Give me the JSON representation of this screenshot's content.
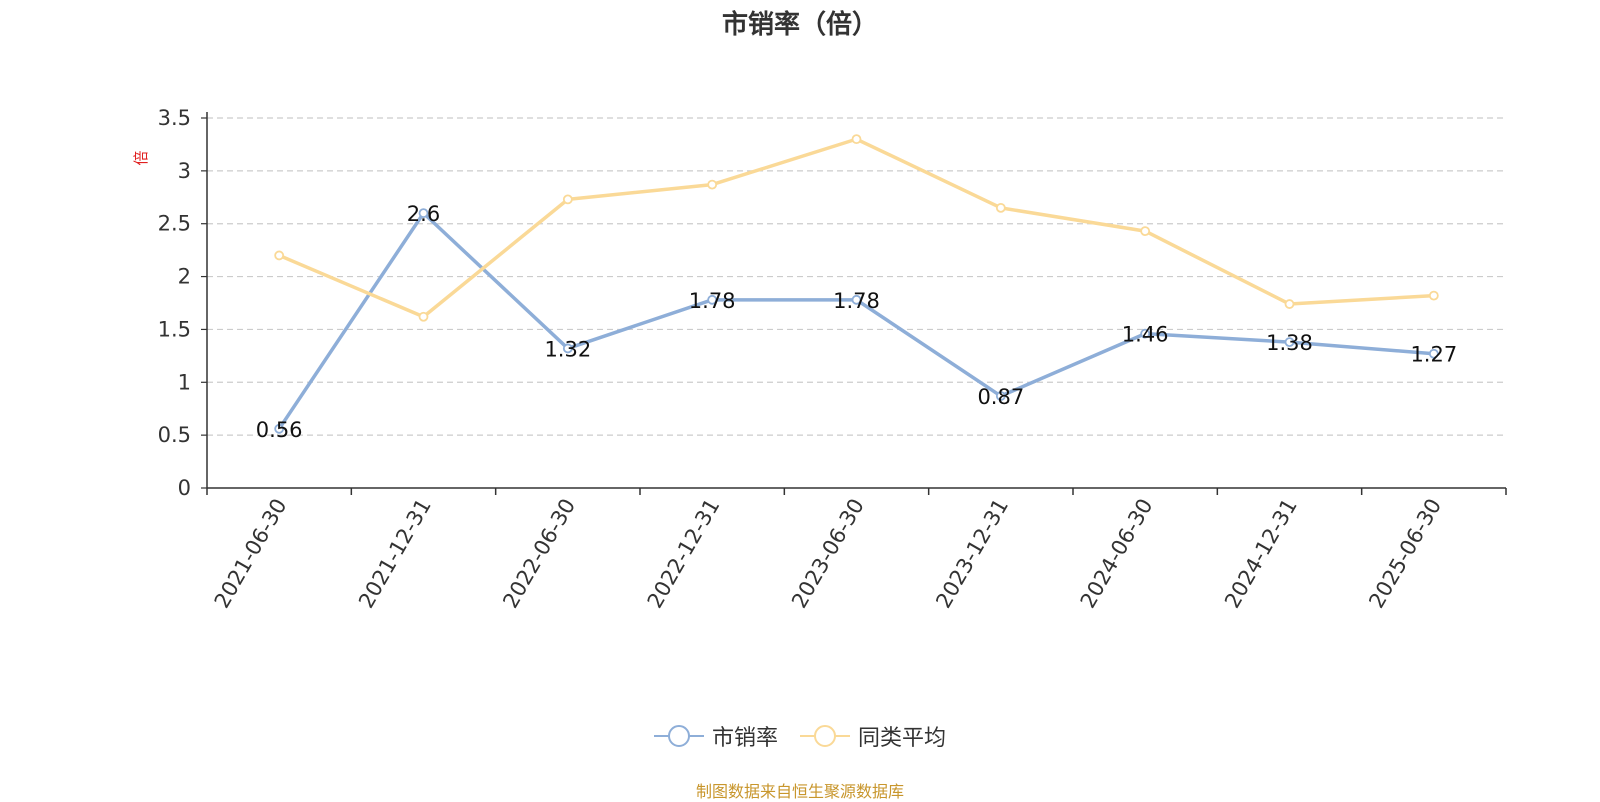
{
  "chart_data": {
    "type": "line",
    "title": "市销率（倍）",
    "ylabel": "倍",
    "xlabel": "",
    "ylim": [
      0,
      3.5
    ],
    "yticks": [
      0,
      0.5,
      1,
      1.5,
      2,
      2.5,
      3,
      3.5
    ],
    "grid": true,
    "legend_position": "bottom",
    "categories": [
      "2021-06-30",
      "2021-12-31",
      "2022-06-30",
      "2022-12-31",
      "2023-06-30",
      "2023-12-31",
      "2024-06-30",
      "2024-12-31",
      "2025-06-30"
    ],
    "series": [
      {
        "name": "市销率",
        "color": "#8eaed8",
        "show_labels": true,
        "values": [
          0.56,
          2.6,
          1.32,
          1.78,
          1.78,
          0.87,
          1.46,
          1.38,
          1.27
        ]
      },
      {
        "name": "同类平均",
        "color": "#fad997",
        "show_labels": false,
        "values": [
          2.2,
          1.62,
          2.73,
          2.87,
          3.3,
          2.65,
          2.43,
          1.74,
          1.82
        ]
      }
    ]
  },
  "source_note": "制图数据来自恒生聚源数据库"
}
